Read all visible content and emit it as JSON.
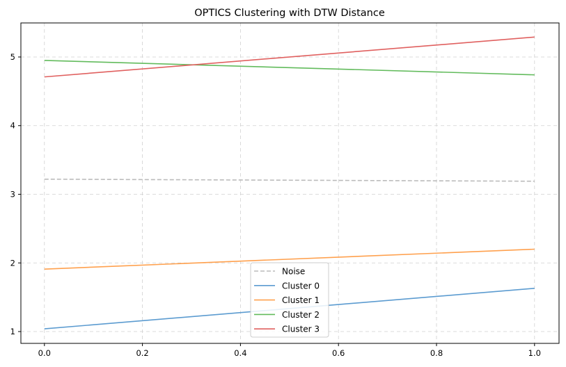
{
  "chart_data": {
    "type": "line",
    "title": "OPTICS Clustering with DTW Distance",
    "xlabel": "",
    "ylabel": "",
    "xlim": [
      -0.048,
      1.05
    ],
    "ylim": [
      0.828,
      5.496
    ],
    "xticks": [
      "0.0",
      "0.2",
      "0.4",
      "0.6",
      "0.8",
      "1.0"
    ],
    "xtick_values": [
      0,
      0.2,
      0.4,
      0.6,
      0.8,
      1.0
    ],
    "yticks": [
      "1",
      "2",
      "3",
      "4",
      "5"
    ],
    "ytick_values": [
      1,
      2,
      3,
      4,
      5
    ],
    "grid": true,
    "legend_position": "bottom-center",
    "series": [
      {
        "name": "Noise",
        "x": [
          0,
          1
        ],
        "y": [
          3.22,
          3.19
        ],
        "color": "#bbbbbb",
        "dashed": true
      },
      {
        "name": "Cluster 0",
        "x": [
          0,
          1
        ],
        "y": [
          1.04,
          1.63
        ],
        "color": "#5b9bd0",
        "dashed": false
      },
      {
        "name": "Cluster 1",
        "x": [
          0,
          1
        ],
        "y": [
          1.91,
          2.2
        ],
        "color": "#ffa04d",
        "dashed": false
      },
      {
        "name": "Cluster 2",
        "x": [
          0,
          1
        ],
        "y": [
          4.95,
          4.74
        ],
        "color": "#62bb5c",
        "dashed": false
      },
      {
        "name": "Cluster 3",
        "x": [
          0,
          1
        ],
        "y": [
          4.71,
          5.29
        ],
        "color": "#e0605f",
        "dashed": false
      }
    ]
  }
}
